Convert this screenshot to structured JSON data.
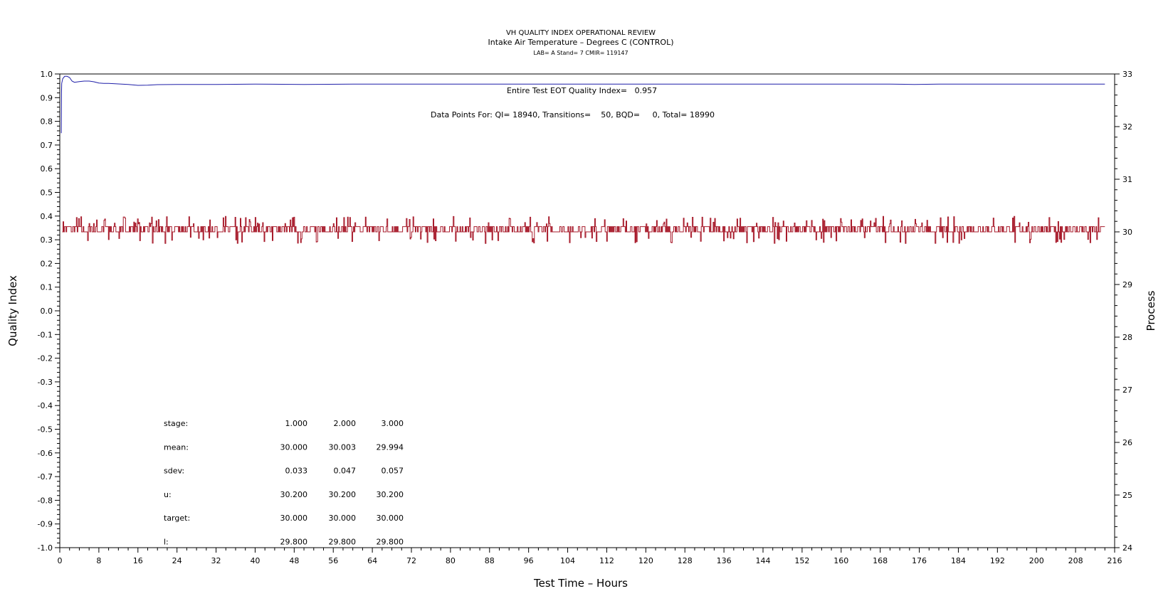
{
  "chart_data": {
    "type": "line",
    "title": "VH QUALITY INDEX OPERATIONAL REVIEW",
    "subtitle": "Intake Air Temperature – Degrees C (CONTROL)",
    "subtitle2": "LAB= A Stand= 7 CMIR= 119147",
    "xlabel": "Test Time – Hours",
    "ylabel_left": "Quality Index",
    "ylabel_right": "Process",
    "xlim": [
      0,
      216
    ],
    "ylim_left": [
      -1.0,
      1.0
    ],
    "ylim_right": [
      24,
      33
    ],
    "x_ticks": [
      "0",
      "8",
      "16",
      "24",
      "32",
      "40",
      "48",
      "56",
      "64",
      "72",
      "80",
      "88",
      "96",
      "104",
      "112",
      "120",
      "128",
      "136",
      "144",
      "152",
      "160",
      "168",
      "176",
      "184",
      "192",
      "200",
      "208",
      "216"
    ],
    "y_left_ticks": [
      "1.0",
      "0.9",
      "0.8",
      "0.7",
      "0.6",
      "0.5",
      "0.4",
      "0.3",
      "0.2",
      "0.1",
      "0.0",
      "-0.1",
      "-0.2",
      "-0.3",
      "-0.4",
      "-0.5",
      "-0.6",
      "-0.7",
      "-0.8",
      "-0.9",
      "-1.0"
    ],
    "y_right_ticks": [
      "33",
      "32",
      "31",
      "30",
      "29",
      "28",
      "27",
      "26",
      "25",
      "24"
    ],
    "annotation_qi": "Entire Test EOT Quality Index=   0.957",
    "annotation_points": "Data Points For: QI= 18940, Transitions=    50, BQD=     0, Total= 18990",
    "series": [
      {
        "axis": "left",
        "color": "#1f1fa8",
        "x": [
          0.3,
          0.35,
          0.4,
          0.6,
          0.8,
          1.0,
          1.5,
          2.0,
          2.5,
          3.0,
          4,
          5,
          6,
          7,
          8,
          9,
          10,
          12,
          14,
          16,
          18,
          20,
          24,
          32,
          40,
          50,
          60,
          70,
          80,
          100,
          120,
          140,
          160,
          170,
          175,
          180,
          190,
          200,
          210,
          214
        ],
        "y": [
          0.75,
          0.92,
          0.96,
          0.98,
          0.985,
          0.99,
          0.99,
          0.985,
          0.97,
          0.965,
          0.968,
          0.97,
          0.97,
          0.967,
          0.962,
          0.96,
          0.96,
          0.958,
          0.956,
          0.952,
          0.953,
          0.955,
          0.956,
          0.956,
          0.957,
          0.956,
          0.957,
          0.957,
          0.957,
          0.957,
          0.957,
          0.957,
          0.957,
          0.957,
          0.956,
          0.957,
          0.957,
          0.957,
          0.957,
          0.957
        ]
      },
      {
        "axis": "right",
        "color": "#a81c2c",
        "center": 30.0,
        "x": [
          0.5,
          214
        ],
        "y": [
          30.0,
          30.0
        ]
      }
    ],
    "stats_table": {
      "rows": [
        {
          "label": "stage:",
          "values": [
            "1.000",
            "2.000",
            "3.000"
          ]
        },
        {
          "label": "mean:",
          "values": [
            "30.000",
            "30.003",
            "29.994"
          ]
        },
        {
          "label": "sdev:",
          "values": [
            "0.033",
            "0.047",
            "0.057"
          ]
        },
        {
          "label": "u:",
          "values": [
            "30.200",
            "30.200",
            "30.200"
          ]
        },
        {
          "label": "target:",
          "values": [
            "30.000",
            "30.000",
            "30.000"
          ]
        },
        {
          "label": "l:",
          "values": [
            "29.800",
            "29.800",
            "29.800"
          ]
        }
      ]
    }
  }
}
